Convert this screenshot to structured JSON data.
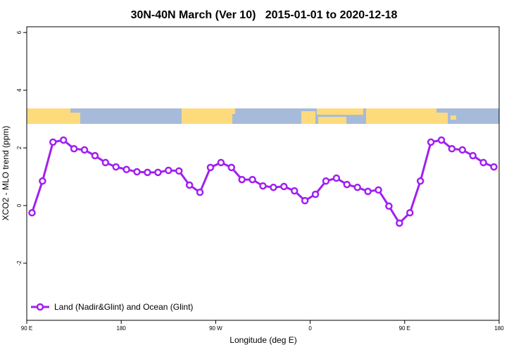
{
  "chart_data": {
    "type": "line",
    "title": "30N-40N March (Ver 10)   2015-01-01 to 2020-12-18",
    "xlabel": "Longitude (deg E)",
    "ylabel": "XCO2 - MLO trend (ppm)",
    "x": [
      95,
      105,
      115,
      125,
      135,
      145,
      155,
      165,
      175,
      185,
      195,
      205,
      215,
      225,
      235,
      245,
      255,
      265,
      275,
      285,
      295,
      305,
      315,
      325,
      335,
      345,
      355,
      365,
      375,
      385,
      395,
      405,
      415,
      425,
      435,
      445,
      455,
      465,
      475,
      485,
      495,
      505,
      515,
      525,
      535
    ],
    "series": [
      {
        "name": "Land (Nadir&Glint) and Ocean (Glint)",
        "color": "#a020f0",
        "values": [
          -0.25,
          0.85,
          2.2,
          2.27,
          1.97,
          1.93,
          1.73,
          1.49,
          1.34,
          1.25,
          1.17,
          1.15,
          1.15,
          1.22,
          1.2,
          0.71,
          0.46,
          1.32,
          1.49,
          1.32,
          0.9,
          0.9,
          0.68,
          0.63,
          0.66,
          0.51,
          0.17,
          0.39,
          0.85,
          0.95,
          0.73,
          0.63,
          0.49,
          0.54,
          -0.02,
          -0.61,
          -0.25,
          0.85,
          2.2,
          2.27,
          1.97,
          1.93,
          1.73,
          1.49,
          1.34
        ]
      }
    ],
    "xlim": [
      90,
      540
    ],
    "xticks": [
      {
        "value": 90,
        "label": "90 E"
      },
      {
        "value": 180,
        "label": "180"
      },
      {
        "value": 270,
        "label": "90 W"
      },
      {
        "value": 360,
        "label": "0"
      },
      {
        "value": 450,
        "label": "90 E"
      },
      {
        "value": 540,
        "label": "180"
      }
    ],
    "ylim": [
      -3.98,
      6.2
    ],
    "yticks": [
      -2,
      0,
      2,
      4,
      6
    ],
    "legend": "lower left"
  }
}
